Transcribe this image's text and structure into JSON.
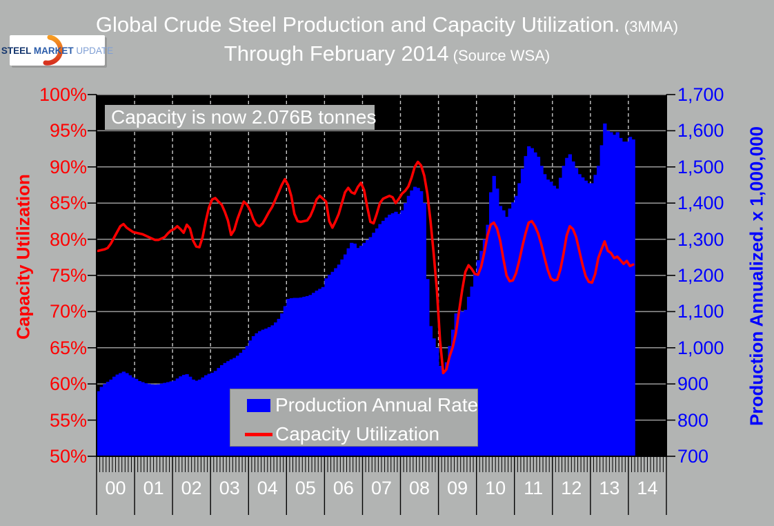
{
  "header": {
    "title_main": "Global Crude Steel Production and Capacity Utilization.",
    "title_note": " (3MMA)",
    "subtitle_main": "Through February 2014",
    "subtitle_note": " (Source WSA)"
  },
  "logo": {
    "word1": "STEEL",
    "word2": " MARKET",
    "word3": " UPDATE"
  },
  "annotation": "Capacity is now 2.076B tonnes",
  "legend": {
    "items": [
      {
        "label": "Production Annual Rate",
        "marker": "bar"
      },
      {
        "label": "Capacity Utilization",
        "marker": "line"
      }
    ]
  },
  "left_axis": {
    "title": "Capacity Utilization",
    "ticks": [
      "100%",
      "95%",
      "90%",
      "85%",
      "80%",
      "75%",
      "70%",
      "65%",
      "60%",
      "55%",
      "50%"
    ],
    "min": 50,
    "max": 100
  },
  "right_axis": {
    "title": "Production Annualized. x 1,000,000",
    "ticks": [
      "1,700",
      "1,600",
      "1,500",
      "1,400",
      "1,300",
      "1,200",
      "1,100",
      "1,000",
      "900",
      "800",
      "700"
    ],
    "min": 700,
    "max": 1700
  },
  "x_axis": {
    "year_labels": [
      "00",
      "01",
      "02",
      "03",
      "04",
      "05",
      "06",
      "07",
      "08",
      "09",
      "10",
      "11",
      "12",
      "13",
      "14"
    ],
    "months_per_year": 12,
    "total_slots": 180
  },
  "colors": {
    "page_bg": "#b2b4b3",
    "plot_bg": "#000000",
    "bar": "#0000fe",
    "line": "#fe0000",
    "grid": "#9a9a9a",
    "grid_dashed": "#c8c8c8",
    "axis": "#000000",
    "title_text": "#ffffff"
  },
  "chart_data": {
    "type": "combo",
    "title": "Global Crude Steel Production and Capacity Utilization. (3MMA) Through February 2014",
    "x_start": "2000-01",
    "x_end": "2014-02",
    "grid": true,
    "legend_position": "bottom-center-inside",
    "series": [
      {
        "name": "Production Annual Rate",
        "type": "bar",
        "axis": "right",
        "ylim": [
          700,
          1700
        ],
        "values": [
          880,
          892,
          900,
          906,
          912,
          920,
          926,
          930,
          934,
          930,
          924,
          918,
          914,
          908,
          905,
          902,
          900,
          899,
          898,
          899,
          901,
          903,
          905,
          907,
          909,
          915,
          921,
          925,
          927,
          920,
          912,
          909,
          912,
          918,
          924,
          928,
          931,
          936,
          944,
          952,
          958,
          963,
          968,
          972,
          978,
          986,
          995,
          1005,
          1020,
          1032,
          1040,
          1046,
          1050,
          1053,
          1057,
          1062,
          1070,
          1080,
          1095,
          1115,
          1135,
          1137,
          1138,
          1138,
          1139,
          1141,
          1143,
          1146,
          1152,
          1158,
          1163,
          1168,
          1192,
          1202,
          1210,
          1220,
          1230,
          1244,
          1258,
          1275,
          1290,
          1288,
          1276,
          1282,
          1290,
          1298,
          1306,
          1318,
          1330,
          1342,
          1351,
          1360,
          1368,
          1372,
          1376,
          1370,
          1380,
          1400,
          1420,
          1435,
          1445,
          1442,
          1433,
          1400,
          1190,
          1060,
          1026,
          1000,
          950,
          931,
          960,
          1005,
          1050,
          1095,
          1105,
          1100,
          1105,
          1141,
          1169,
          1204,
          1242,
          1268,
          1300,
          1340,
          1430,
          1475,
          1440,
          1392,
          1380,
          1362,
          1385,
          1402,
          1420,
          1455,
          1495,
          1530,
          1557,
          1552,
          1540,
          1528,
          1503,
          1480,
          1465,
          1459,
          1448,
          1440,
          1470,
          1503,
          1525,
          1535,
          1515,
          1497,
          1480,
          1471,
          1462,
          1455,
          1455,
          1478,
          1503,
          1560,
          1620,
          1600,
          1596,
          1589,
          1596,
          1580,
          1570,
          1570,
          1583,
          1576
        ]
      },
      {
        "name": "Capacity Utilization",
        "type": "line",
        "axis": "left",
        "ylim": [
          50,
          100
        ],
        "unit": "%",
        "values": [
          78.4,
          78.5,
          78.6,
          78.8,
          79.4,
          80.2,
          81.0,
          81.8,
          82.1,
          81.6,
          81.3,
          81.0,
          80.9,
          80.8,
          80.7,
          80.5,
          80.3,
          80.1,
          79.9,
          79.9,
          80.1,
          80.3,
          80.8,
          81.2,
          81.4,
          81.8,
          81.4,
          80.9,
          82.0,
          81.5,
          79.8,
          79.0,
          78.9,
          80.3,
          82.5,
          84.4,
          85.5,
          85.7,
          85.2,
          84.8,
          83.8,
          82.6,
          80.6,
          81.3,
          82.8,
          84.0,
          85.2,
          84.8,
          84.0,
          82.8,
          82.0,
          81.8,
          82.2,
          83.0,
          83.8,
          84.5,
          85.5,
          86.5,
          87.5,
          88.3,
          87.5,
          86.0,
          83.5,
          82.5,
          82.4,
          82.5,
          82.6,
          83.2,
          84.2,
          85.5,
          86.0,
          85.6,
          85.2,
          82.5,
          81.6,
          82.5,
          83.5,
          85.0,
          86.5,
          87.1,
          86.5,
          86.3,
          87.2,
          87.8,
          86.8,
          84.5,
          82.4,
          82.2,
          83.5,
          85.0,
          85.6,
          85.8,
          86.0,
          85.8,
          85.0,
          85.6,
          86.3,
          86.7,
          87.3,
          88.5,
          90.0,
          90.7,
          90.2,
          88.8,
          86.3,
          82.5,
          78.0,
          73.0,
          66.0,
          61.5,
          62.0,
          63.8,
          65.1,
          67.0,
          70.0,
          73.0,
          75.5,
          76.4,
          75.9,
          75.2,
          75.1,
          76.2,
          78.2,
          80.5,
          82.0,
          82.3,
          81.5,
          79.8,
          77.3,
          75.0,
          74.2,
          74.3,
          75.3,
          77.0,
          79.0,
          80.8,
          82.3,
          82.5,
          81.8,
          80.8,
          79.3,
          77.5,
          75.8,
          74.6,
          74.3,
          74.4,
          75.8,
          78.0,
          80.5,
          81.8,
          81.4,
          80.3,
          78.4,
          76.5,
          74.9,
          74.1,
          74.0,
          75.2,
          77.4,
          78.6,
          79.7,
          78.4,
          78.1,
          77.4,
          77.6,
          77.1,
          76.6,
          77.0,
          76.3,
          76.5
        ]
      }
    ]
  }
}
